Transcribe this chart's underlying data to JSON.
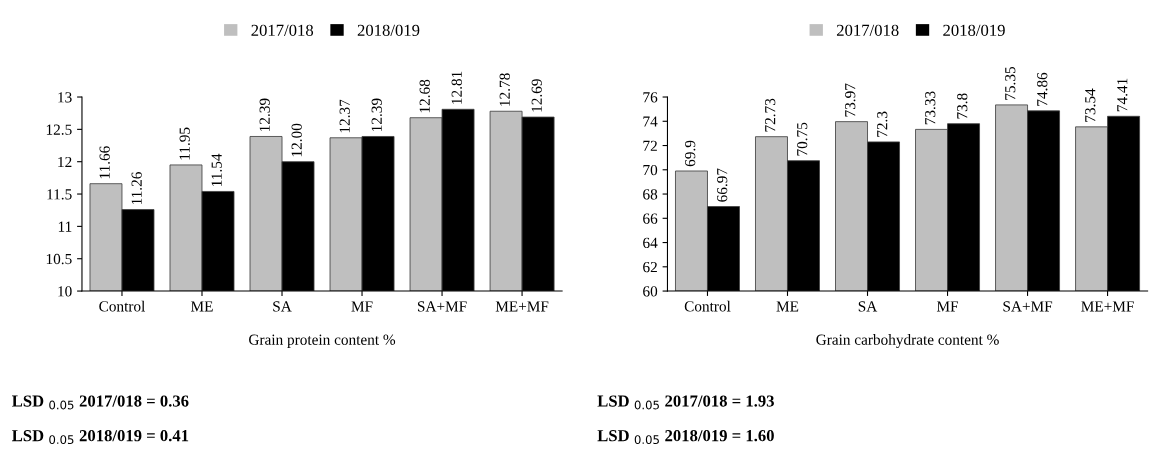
{
  "chart_data": [
    {
      "type": "bar",
      "categories": [
        "Control",
        "ME",
        "SA",
        "MF",
        "SA+MF",
        "ME+MF"
      ],
      "xlabel": "Grain protein content %",
      "ylim": [
        10,
        13
      ],
      "yticks": [
        10,
        10.5,
        11,
        11.5,
        12,
        12.5,
        13
      ],
      "legend": "top",
      "annotations": [
        "LSD $_{0.05}$ 2017/018 = 0.36",
        "LSD $_{0.05}$ 2018/019 = 0.41"
      ],
      "series": [
        {
          "name": "2017/018",
          "color": "#bfbfbf",
          "values": [
            11.66,
            11.95,
            12.39,
            12.37,
            12.68,
            12.78
          ],
          "value_labels": [
            "11.66",
            "11.95",
            "12.39",
            "12.37",
            "12.68",
            "12.78"
          ]
        },
        {
          "name": "2018/019",
          "color": "#000000",
          "values": [
            11.26,
            11.54,
            12.0,
            12.39,
            12.81,
            12.69
          ],
          "value_labels": [
            "11.26",
            "11.54",
            "12.00",
            "12.39",
            "12.81",
            "12.69"
          ]
        }
      ]
    },
    {
      "type": "bar",
      "categories": [
        "Control",
        "ME",
        "SA",
        "MF",
        "SA+MF",
        "ME+MF"
      ],
      "xlabel": "Grain carbohydrate content %",
      "ylim": [
        60,
        76
      ],
      "yticks": [
        60,
        62,
        64,
        66,
        68,
        70,
        72,
        74,
        76
      ],
      "legend": "top",
      "annotations": [
        "LSD $_{0.05}$ 2017/018 = 1.93",
        "LSD $_{0.05}$ 2018/019 = 1.60"
      ],
      "series": [
        {
          "name": "2017/018",
          "color": "#bfbfbf",
          "values": [
            69.9,
            72.73,
            73.97,
            73.33,
            75.35,
            73.54
          ],
          "value_labels": [
            "69.9",
            "72.73",
            "73.97",
            "73.33",
            "75.35",
            "73.54"
          ]
        },
        {
          "name": "2018/019",
          "color": "#000000",
          "values": [
            66.97,
            70.75,
            72.3,
            73.8,
            74.86,
            74.41
          ],
          "value_labels": [
            "66.97",
            "70.75",
            "72.3",
            "73.8",
            "74.86",
            "74.41"
          ]
        }
      ]
    }
  ]
}
